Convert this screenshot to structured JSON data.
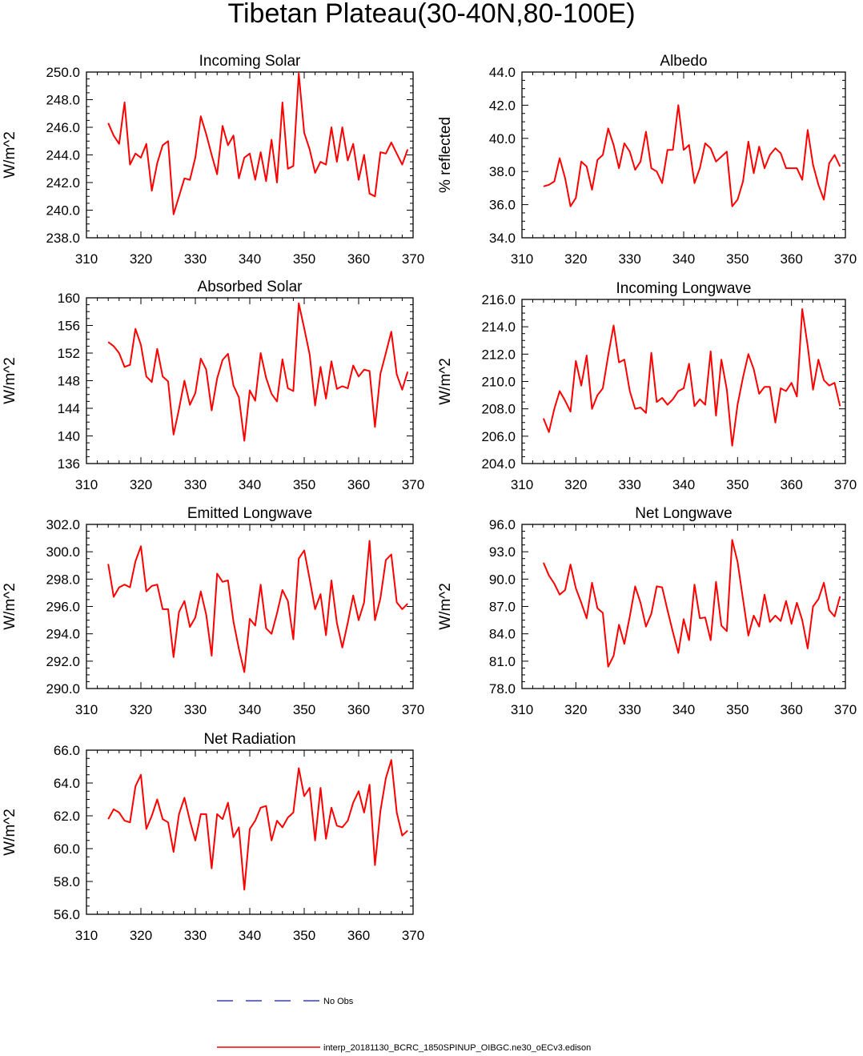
{
  "figure": {
    "title": "Tibetan Plateau(30-40N,80-100E)"
  },
  "legend": {
    "entries": [
      {
        "label": "No Obs",
        "color": "#3a3ad6",
        "style": "dashed"
      },
      {
        "label": "interp_20181130_BCRC_1850SPINUP_OIBGC.ne30_oECv3.edison",
        "color": "#ff0000",
        "style": "solid"
      }
    ]
  },
  "chart_data": [
    {
      "type": "line",
      "title": "Incoming Solar",
      "xlabel": "",
      "ylabel": "W/m^2",
      "xlim": [
        310,
        370
      ],
      "ylim": [
        238,
        250
      ],
      "xticks": [
        310,
        320,
        330,
        340,
        350,
        360,
        370
      ],
      "yticks": [
        238,
        240,
        242,
        244,
        246,
        248,
        250
      ],
      "ytick_decimals": 1,
      "grid": false,
      "series": [
        {
          "name": "interp_20181130_BCRC_1850SPINUP_OIBGC.ne30_oECv3.edison",
          "color": "#ff0000",
          "x": [
            314,
            315,
            316,
            317,
            318,
            319,
            320,
            321,
            322,
            323,
            324,
            325,
            326,
            327,
            328,
            329,
            330,
            331,
            332,
            333,
            334,
            335,
            336,
            337,
            338,
            339,
            340,
            341,
            342,
            343,
            344,
            345,
            346,
            347,
            348,
            349,
            350,
            351,
            352,
            353,
            354,
            355,
            356,
            357,
            358,
            359,
            360,
            361,
            362,
            363,
            364,
            365,
            366,
            367,
            368,
            369
          ],
          "values": [
            246.3,
            245.4,
            244.8,
            247.8,
            243.3,
            244.1,
            243.8,
            244.8,
            241.4,
            243.4,
            244.7,
            245.0,
            239.7,
            241.0,
            242.3,
            242.2,
            243.8,
            246.8,
            245.5,
            244.0,
            242.6,
            246.1,
            244.7,
            245.4,
            242.3,
            243.8,
            244.1,
            242.2,
            244.2,
            242.1,
            245.1,
            242.0,
            247.8,
            243.0,
            243.2,
            249.9,
            245.6,
            244.4,
            242.7,
            243.5,
            243.3,
            246.0,
            243.5,
            246.0,
            243.6,
            244.8,
            242.2,
            244.0,
            241.2,
            241.0,
            244.2,
            244.1,
            244.9,
            244.1,
            243.3,
            244.4
          ]
        }
      ]
    },
    {
      "type": "line",
      "title": "Albedo",
      "xlabel": "",
      "ylabel": "% reflected",
      "xlim": [
        310,
        370
      ],
      "ylim": [
        34,
        44
      ],
      "xticks": [
        310,
        320,
        330,
        340,
        350,
        360,
        370
      ],
      "yticks": [
        34,
        36,
        38,
        40,
        42,
        44
      ],
      "ytick_decimals": 1,
      "grid": false,
      "series": [
        {
          "name": "interp_20181130_BCRC_1850SPINUP_OIBGC.ne30_oECv3.edison",
          "color": "#ff0000",
          "x": [
            314,
            315,
            316,
            317,
            318,
            319,
            320,
            321,
            322,
            323,
            324,
            325,
            326,
            327,
            328,
            329,
            330,
            331,
            332,
            333,
            334,
            335,
            336,
            337,
            338,
            339,
            340,
            341,
            342,
            343,
            344,
            345,
            346,
            347,
            348,
            349,
            350,
            351,
            352,
            353,
            354,
            355,
            356,
            357,
            358,
            359,
            360,
            361,
            362,
            363,
            364,
            365,
            366,
            367,
            368,
            369
          ],
          "values": [
            37.1,
            37.2,
            37.4,
            38.8,
            37.6,
            35.9,
            36.4,
            38.6,
            38.3,
            36.9,
            38.7,
            39.0,
            40.6,
            39.6,
            38.2,
            39.7,
            39.2,
            38.1,
            38.6,
            40.4,
            38.2,
            38.0,
            37.3,
            39.3,
            39.3,
            42.0,
            39.3,
            39.6,
            37.3,
            38.2,
            39.7,
            39.4,
            38.6,
            38.9,
            39.2,
            35.9,
            36.3,
            37.4,
            39.8,
            37.9,
            39.5,
            38.2,
            39.0,
            39.4,
            39.1,
            38.2,
            38.2,
            38.2,
            37.5,
            40.5,
            38.4,
            37.2,
            36.3,
            38.5,
            39.0,
            38.3
          ]
        }
      ]
    },
    {
      "type": "line",
      "title": "Absorbed Solar",
      "xlabel": "",
      "ylabel": "W/m^2",
      "xlim": [
        310,
        370
      ],
      "ylim": [
        136,
        160
      ],
      "xticks": [
        310,
        320,
        330,
        340,
        350,
        360,
        370
      ],
      "yticks": [
        136,
        140,
        144,
        148,
        152,
        156,
        160
      ],
      "ytick_decimals": 0,
      "grid": false,
      "series": [
        {
          "name": "interp_20181130_BCRC_1850SPINUP_OIBGC.ne30_oECv3.edison",
          "color": "#ff0000",
          "x": [
            314,
            315,
            316,
            317,
            318,
            319,
            320,
            321,
            322,
            323,
            324,
            325,
            326,
            327,
            328,
            329,
            330,
            331,
            332,
            333,
            334,
            335,
            336,
            337,
            338,
            339,
            340,
            341,
            342,
            343,
            344,
            345,
            346,
            347,
            348,
            349,
            350,
            351,
            352,
            353,
            354,
            355,
            356,
            357,
            358,
            359,
            360,
            361,
            362,
            363,
            364,
            365,
            366,
            367,
            368,
            369
          ],
          "values": [
            153.6,
            153.0,
            152.0,
            150.0,
            150.3,
            155.5,
            153.2,
            148.6,
            147.8,
            152.6,
            148.6,
            147.9,
            140.2,
            143.9,
            148.0,
            144.5,
            146.2,
            151.2,
            149.6,
            143.7,
            148.3,
            151.0,
            151.9,
            147.3,
            145.6,
            139.3,
            146.6,
            145.1,
            152.0,
            148.4,
            146.1,
            145.0,
            151.1,
            146.9,
            146.5,
            159.2,
            155.6,
            151.8,
            144.4,
            150.0,
            145.4,
            150.8,
            146.8,
            147.2,
            146.9,
            150.2,
            148.6,
            149.6,
            149.4,
            141.3,
            149.0,
            152.0,
            155.1,
            148.9,
            146.7,
            149.3
          ]
        }
      ]
    },
    {
      "type": "line",
      "title": "Incoming Longwave",
      "xlabel": "",
      "ylabel": "W/m^2",
      "xlim": [
        310,
        370
      ],
      "ylim": [
        204,
        216
      ],
      "xticks": [
        310,
        320,
        330,
        340,
        350,
        360,
        370
      ],
      "yticks": [
        204,
        206,
        208,
        210,
        212,
        214,
        216
      ],
      "ytick_decimals": 1,
      "grid": false,
      "series": [
        {
          "name": "interp_20181130_BCRC_1850SPINUP_OIBGC.ne30_oECv3.edison",
          "color": "#ff0000",
          "x": [
            314,
            315,
            316,
            317,
            318,
            319,
            320,
            321,
            322,
            323,
            324,
            325,
            326,
            327,
            328,
            329,
            330,
            331,
            332,
            333,
            334,
            335,
            336,
            337,
            338,
            339,
            340,
            341,
            342,
            343,
            344,
            345,
            346,
            347,
            348,
            349,
            350,
            351,
            352,
            353,
            354,
            355,
            356,
            357,
            358,
            359,
            360,
            361,
            362,
            363,
            364,
            365,
            366,
            367,
            368,
            369
          ],
          "values": [
            207.3,
            206.3,
            208.0,
            209.3,
            208.6,
            207.8,
            211.5,
            209.7,
            211.9,
            208.0,
            209.0,
            209.5,
            211.9,
            214.1,
            211.4,
            211.6,
            209.3,
            208.0,
            208.1,
            207.7,
            212.1,
            208.5,
            208.8,
            208.3,
            208.7,
            209.3,
            209.5,
            211.3,
            208.2,
            208.7,
            208.3,
            212.2,
            207.5,
            211.6,
            209.4,
            205.3,
            208.3,
            210.3,
            212.0,
            210.9,
            209.1,
            209.6,
            209.6,
            207.0,
            209.5,
            209.3,
            209.9,
            208.9,
            215.3,
            212.6,
            209.4,
            211.6,
            210.1,
            209.7,
            209.9,
            208.2
          ]
        }
      ]
    },
    {
      "type": "line",
      "title": "Emitted Longwave",
      "xlabel": "",
      "ylabel": "W/m^2",
      "xlim": [
        310,
        370
      ],
      "ylim": [
        290,
        302
      ],
      "xticks": [
        310,
        320,
        330,
        340,
        350,
        360,
        370
      ],
      "yticks": [
        290,
        292,
        294,
        296,
        298,
        300,
        302
      ],
      "ytick_decimals": 1,
      "grid": false,
      "series": [
        {
          "name": "interp_20181130_BCRC_1850SPINUP_OIBGC.ne30_oECv3.edison",
          "color": "#ff0000",
          "x": [
            314,
            315,
            316,
            317,
            318,
            319,
            320,
            321,
            322,
            323,
            324,
            325,
            326,
            327,
            328,
            329,
            330,
            331,
            332,
            333,
            334,
            335,
            336,
            337,
            338,
            339,
            340,
            341,
            342,
            343,
            344,
            345,
            346,
            347,
            348,
            349,
            350,
            351,
            352,
            353,
            354,
            355,
            356,
            357,
            358,
            359,
            360,
            361,
            362,
            363,
            364,
            365,
            366,
            367,
            368,
            369
          ],
          "values": [
            299.1,
            296.7,
            297.4,
            297.6,
            297.4,
            299.3,
            300.4,
            297.1,
            297.5,
            297.6,
            295.8,
            295.8,
            292.3,
            295.6,
            296.4,
            294.5,
            295.2,
            297.1,
            295.4,
            292.4,
            298.4,
            297.8,
            297.9,
            294.9,
            292.9,
            291.2,
            295.1,
            294.6,
            297.6,
            294.4,
            294.0,
            295.5,
            297.2,
            296.4,
            293.6,
            299.5,
            300.1,
            298.0,
            295.8,
            296.9,
            293.9,
            297.9,
            294.8,
            293.0,
            294.8,
            296.8,
            295.0,
            296.3,
            300.8,
            295.0,
            296.6,
            299.4,
            299.8,
            296.3,
            295.8,
            296.2
          ]
        }
      ]
    },
    {
      "type": "line",
      "title": "Net Longwave",
      "xlabel": "",
      "ylabel": "W/m^2",
      "xlim": [
        310,
        370
      ],
      "ylim": [
        78,
        96
      ],
      "xticks": [
        310,
        320,
        330,
        340,
        350,
        360,
        370
      ],
      "yticks": [
        78,
        81,
        84,
        87,
        90,
        93,
        96
      ],
      "ytick_decimals": 1,
      "grid": false,
      "series": [
        {
          "name": "interp_20181130_BCRC_1850SPINUP_OIBGC.ne30_oECv3.edison",
          "color": "#ff0000",
          "x": [
            314,
            315,
            316,
            317,
            318,
            319,
            320,
            321,
            322,
            323,
            324,
            325,
            326,
            327,
            328,
            329,
            330,
            331,
            332,
            333,
            334,
            335,
            336,
            337,
            338,
            339,
            340,
            341,
            342,
            343,
            344,
            345,
            346,
            347,
            348,
            349,
            350,
            351,
            352,
            353,
            354,
            355,
            356,
            357,
            358,
            359,
            360,
            361,
            362,
            363,
            364,
            365,
            366,
            367,
            368,
            369
          ],
          "values": [
            91.8,
            90.4,
            89.5,
            88.3,
            88.8,
            91.6,
            89.0,
            87.4,
            85.7,
            89.6,
            86.8,
            86.3,
            80.4,
            81.6,
            85.0,
            82.9,
            85.9,
            89.2,
            87.4,
            84.8,
            86.2,
            89.2,
            89.1,
            86.6,
            84.2,
            81.9,
            85.6,
            83.3,
            89.4,
            85.7,
            85.8,
            83.3,
            89.7,
            84.9,
            84.3,
            94.3,
            91.9,
            87.8,
            83.8,
            86.0,
            84.8,
            88.3,
            85.3,
            86.0,
            85.4,
            87.6,
            85.1,
            87.4,
            85.5,
            82.4,
            87.0,
            87.8,
            89.6,
            86.6,
            85.9,
            88.1
          ]
        }
      ]
    },
    {
      "type": "line",
      "title": "Net Radiation",
      "xlabel": "",
      "ylabel": "W/m^2",
      "xlim": [
        310,
        370
      ],
      "ylim": [
        56,
        66
      ],
      "xticks": [
        310,
        320,
        330,
        340,
        350,
        360,
        370
      ],
      "yticks": [
        56,
        58,
        60,
        62,
        64,
        66
      ],
      "ytick_decimals": 1,
      "grid": false,
      "series": [
        {
          "name": "interp_20181130_BCRC_1850SPINUP_OIBGC.ne30_oECv3.edison",
          "color": "#ff0000",
          "x": [
            314,
            315,
            316,
            317,
            318,
            319,
            320,
            321,
            322,
            323,
            324,
            325,
            326,
            327,
            328,
            329,
            330,
            331,
            332,
            333,
            334,
            335,
            336,
            337,
            338,
            339,
            340,
            341,
            342,
            343,
            344,
            345,
            346,
            347,
            348,
            349,
            350,
            351,
            352,
            353,
            354,
            355,
            356,
            357,
            358,
            359,
            360,
            361,
            362,
            363,
            364,
            365,
            366,
            367,
            368,
            369
          ],
          "values": [
            61.8,
            62.4,
            62.2,
            61.7,
            61.6,
            63.8,
            64.5,
            61.2,
            62.0,
            63.0,
            61.8,
            61.6,
            59.8,
            62.1,
            63.1,
            61.7,
            60.5,
            62.1,
            62.1,
            58.8,
            62.1,
            61.8,
            62.8,
            60.7,
            61.3,
            57.5,
            61.2,
            61.7,
            62.5,
            62.6,
            60.5,
            61.7,
            61.3,
            61.9,
            62.2,
            64.9,
            63.2,
            63.7,
            60.5,
            63.7,
            60.6,
            62.5,
            61.4,
            61.3,
            61.7,
            62.8,
            63.5,
            62.2,
            63.9,
            59.0,
            62.3,
            64.3,
            65.4,
            62.2,
            60.8,
            61.1
          ]
        }
      ]
    }
  ]
}
